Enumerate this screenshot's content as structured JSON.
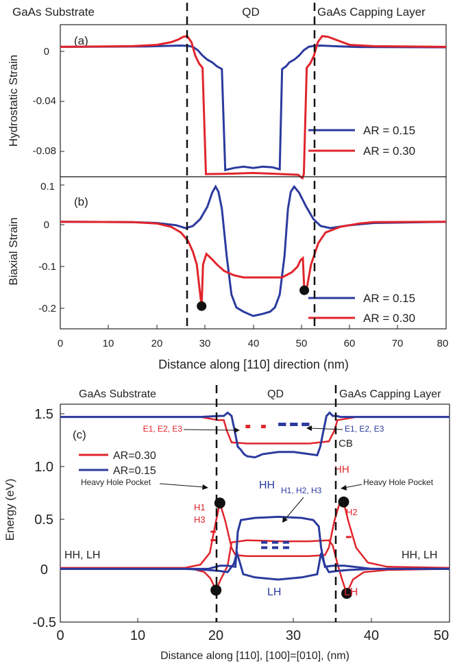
{
  "chart_data": [
    {
      "type": "line",
      "panel_label": "(a)",
      "region_labels": [
        "GaAs Substrate",
        "QD",
        "GaAs Capping Layer"
      ],
      "ylabel": "Hydrostatic Strain",
      "yticks": [
        "0",
        "-0.04",
        "-0.08"
      ],
      "ylim": [
        -0.096,
        0.017
      ],
      "xlim": [
        0,
        80
      ],
      "dividers": [
        26.7,
        53.3
      ],
      "legend": {
        "placement": "right",
        "entries": [
          "AR = 0.15",
          "AR = 0.30"
        ]
      },
      "series": [
        {
          "name": "AR = 0.15",
          "color": "#2b3a9e",
          "x": [
            0,
            18,
            22,
            25,
            26.5,
            27.5,
            28.5,
            29.5,
            30.5,
            31.5,
            32.5,
            33.5,
            34.2,
            36,
            38,
            40,
            42,
            44,
            45.5,
            46,
            46.8,
            47.5,
            48.5,
            49.5,
            50.5,
            51.5,
            52.5,
            54,
            58,
            62,
            80
          ],
          "y": [
            0.0005,
            0.0008,
            0.0012,
            0.0015,
            0.0012,
            0.0005,
            -0.002,
            -0.006,
            -0.009,
            -0.011,
            -0.014,
            -0.016,
            -0.091,
            -0.0895,
            -0.0885,
            -0.0895,
            -0.0885,
            -0.089,
            -0.0905,
            -0.016,
            -0.014,
            -0.011,
            -0.009,
            -0.006,
            -0.002,
            0.0005,
            0.0012,
            0.0015,
            0.0008,
            0.0004,
            0.0002
          ]
        },
        {
          "name": "AR = 0.30",
          "color": "#e0242b",
          "x": [
            0,
            15,
            20,
            23,
            24.5,
            25.5,
            26.3,
            27.2,
            28,
            28.8,
            29.5,
            30.2,
            34,
            40,
            46,
            49.3,
            50.2,
            50.5,
            51.1,
            51.8,
            52.6,
            53.4,
            54.3,
            55.5,
            57,
            60,
            65,
            80
          ],
          "y": [
            0.0005,
            0.001,
            0.002,
            0.004,
            0.006,
            0.008,
            0.0085,
            0.004,
            -0.006,
            -0.012,
            -0.015,
            -0.094,
            -0.0938,
            -0.0932,
            -0.094,
            -0.0945,
            -0.097,
            -0.094,
            -0.015,
            -0.012,
            -0.006,
            0.004,
            0.0085,
            0.008,
            0.006,
            0.002,
            0.001,
            0.0005
          ]
        }
      ]
    },
    {
      "type": "line",
      "panel_label": "(b)",
      "ylabel": "Biaxial Strain",
      "xlabel": "Distance along [110] direction (nm)",
      "xticks": [
        "0",
        "10",
        "20",
        "30",
        "40",
        "50",
        "60",
        "70",
        "80"
      ],
      "yticks": [
        "0.1",
        "0",
        "-0.1",
        "-0.2"
      ],
      "ylim": [
        -0.25,
        0.105
      ],
      "xlim": [
        0,
        80
      ],
      "dividers": [
        26.7,
        53.3
      ],
      "legend": {
        "placement": "right",
        "entries": [
          "AR = 0.15",
          "AR = 0.30"
        ]
      },
      "markers": [
        {
          "x": 29.3,
          "y": -0.197
        },
        {
          "x": 50.6,
          "y": -0.16
        }
      ],
      "series": [
        {
          "name": "AR = 0.15",
          "color": "#2b3a9e",
          "x": [
            0,
            15,
            20,
            24,
            26,
            27.5,
            29,
            30.5,
            31.5,
            32.2,
            32.8,
            33.5,
            34.5,
            35.5,
            36.5,
            38,
            40,
            42,
            43.5,
            44.5,
            45.5,
            46.5,
            47.2,
            47.8,
            48.5,
            49.5,
            51,
            52.5,
            54,
            56,
            60,
            65,
            80
          ],
          "y": [
            0.0,
            -0.001,
            -0.003,
            -0.008,
            -0.015,
            -0.01,
            0.006,
            0.035,
            0.068,
            0.082,
            0.07,
            0.03,
            -0.08,
            -0.17,
            -0.2,
            -0.21,
            -0.22,
            -0.215,
            -0.21,
            -0.2,
            -0.17,
            -0.08,
            0.03,
            0.07,
            0.082,
            0.068,
            0.035,
            0.006,
            -0.01,
            -0.015,
            -0.008,
            -0.003,
            0.0
          ]
        },
        {
          "name": "AR = 0.30",
          "color": "#e0242b",
          "x": [
            0,
            15,
            20,
            23,
            25,
            26.5,
            27.5,
            28.3,
            28.8,
            29.3,
            29.6,
            30.3,
            31.5,
            32.5,
            34,
            36,
            38,
            42,
            46,
            48,
            49.2,
            49.8,
            50.3,
            50.6,
            51.2,
            52,
            53.5,
            55,
            58,
            62,
            65,
            80
          ],
          "y": [
            0.0,
            -0.001,
            -0.004,
            -0.012,
            -0.025,
            -0.045,
            -0.07,
            -0.1,
            -0.15,
            -0.197,
            -0.1,
            -0.075,
            -0.088,
            -0.1,
            -0.115,
            -0.125,
            -0.13,
            -0.13,
            -0.13,
            -0.118,
            -0.105,
            -0.09,
            -0.085,
            -0.16,
            -0.15,
            -0.1,
            -0.05,
            -0.025,
            -0.012,
            -0.004,
            -0.001,
            0.0
          ]
        }
      ]
    },
    {
      "type": "line",
      "panel_label": "(c)",
      "region_labels": [
        "GaAs Substrate",
        "QD",
        "GaAs Capping Layer"
      ],
      "ylabel": "Energy (eV)",
      "xlabel": "Distance along [110], [100]=[010], (nm)",
      "xticks": [
        "0",
        "10",
        "20",
        "30",
        "40",
        "50"
      ],
      "yticks": [
        "1.5",
        "1.0",
        "0.5",
        "0",
        "-0.5"
      ],
      "ylim": [
        -0.5,
        1.55
      ],
      "xlim": [
        0,
        50
      ],
      "dividers": [
        20.5,
        36.0
      ],
      "legend": {
        "placement": "left",
        "entries": [
          "AR=0.30",
          "AR=0.15"
        ]
      },
      "annotations": {
        "e_red": "E1, E2, E3",
        "e_blue": "E1, E2, E3",
        "cb": "CB",
        "hh_hole_pocket_left": "Heavy Hole Pocket",
        "hh_hole_pocket_right": "Heavy Hole Pocket",
        "h_blue": "H1, H2, H3",
        "hh_blue": "HH",
        "hh_red": "HH",
        "h1": "H1",
        "h3": "H3",
        "h2": "H2",
        "lh_blue": "LH",
        "lh_red": "LH",
        "hhlh_left": "HH, LH",
        "hhlh_right": "HH, LH"
      },
      "markers": [
        {
          "x": 20.5,
          "y": 0.62
        },
        {
          "x": 20.0,
          "y": -0.2
        },
        {
          "x": 36.4,
          "y": 0.63
        },
        {
          "x": 36.8,
          "y": -0.23
        }
      ],
      "energy_levels": {
        "red_E": [
          {
            "x0": 23.8,
            "x1": 24.4,
            "y": 1.34
          },
          {
            "x0": 25.8,
            "x1": 26.4,
            "y": 1.34
          }
        ],
        "blue_E": [
          {
            "x0": 28.0,
            "x1": 29.0,
            "y": 1.36
          },
          {
            "x0": 29.5,
            "x1": 30.5,
            "y": 1.36
          },
          {
            "x0": 31.0,
            "x1": 32.0,
            "y": 1.36
          }
        ],
        "blue_H": [
          {
            "x0": 25.8,
            "x1": 26.6,
            "y": 0.25
          },
          {
            "x0": 27.2,
            "x1": 28.0,
            "y": 0.25
          },
          {
            "x0": 28.6,
            "x1": 29.4,
            "y": 0.25
          },
          {
            "x0": 25.8,
            "x1": 26.6,
            "y": 0.2
          },
          {
            "x0": 27.2,
            "x1": 28.0,
            "y": 0.2
          },
          {
            "x0": 28.6,
            "x1": 29.4,
            "y": 0.2
          }
        ],
        "red_H": [
          {
            "x0": 19.3,
            "x1": 20.0,
            "y": 0.35
          },
          {
            "x0": 19.3,
            "x1": 20.0,
            "y": 0.27
          },
          {
            "x0": 36.7,
            "x1": 37.4,
            "y": 0.3
          }
        ]
      },
      "series": [
        {
          "name": "AR=0.30",
          "color": "#e0242b",
          "x": [
            0,
            18,
            19.5,
            20.3,
            21.0,
            21.4,
            22.0,
            24,
            28,
            32,
            34.5,
            35.2,
            35.6,
            36.5,
            38,
            50
          ],
          "y": [
            1.43,
            1.43,
            1.41,
            1.4,
            1.4,
            1.3,
            1.19,
            1.18,
            1.18,
            1.18,
            1.2,
            1.3,
            1.4,
            1.41,
            1.43,
            1.43
          ]
        },
        {
          "name": "AR=0.30",
          "color": "#e0242b",
          "x": [
            0,
            16,
            18,
            19.2,
            20.0,
            20.5,
            21.2,
            22.0,
            22.5,
            24,
            28,
            32,
            34,
            34.5,
            35.2,
            35.8,
            36.4,
            37.0,
            38.0,
            39.5,
            42,
            50
          ],
          "y": [
            0.01,
            0.01,
            0.04,
            0.15,
            0.45,
            0.62,
            0.45,
            0.2,
            0.13,
            0.12,
            0.12,
            0.12,
            0.13,
            0.2,
            0.45,
            0.6,
            0.63,
            0.45,
            0.2,
            0.06,
            0.02,
            0.01
          ]
        },
        {
          "name": "AR=0.30",
          "color": "#e0242b",
          "x": [
            0,
            17,
            18.5,
            19.3,
            20.0,
            20.6,
            21.5,
            22.0,
            24,
            28,
            32,
            34.5,
            35.0,
            35.6,
            36.2,
            36.8,
            37.6,
            39,
            42,
            50
          ],
          "y": [
            0.0,
            0.0,
            -0.03,
            -0.09,
            -0.2,
            -0.1,
            0.03,
            0.25,
            0.27,
            0.26,
            0.26,
            0.27,
            0.22,
            0.05,
            -0.1,
            -0.23,
            -0.1,
            -0.03,
            -0.01,
            0.0
          ]
        },
        {
          "name": "AR=0.15",
          "color": "#2b3a9e",
          "x": [
            0,
            18,
            20.5,
            21.0,
            21.5,
            22.0,
            22.4,
            22.8,
            23.2,
            23.6,
            24,
            25,
            26,
            28,
            30,
            32,
            33,
            33.4,
            33.8,
            34.2,
            34.6,
            35.0,
            35.5,
            36.0,
            38,
            50
          ],
          "y": [
            1.43,
            1.43,
            1.44,
            1.44,
            1.47,
            1.44,
            1.3,
            1.15,
            1.12,
            1.08,
            1.06,
            1.05,
            1.08,
            1.1,
            1.1,
            1.08,
            1.07,
            1.15,
            1.3,
            1.44,
            1.47,
            1.44,
            1.44,
            1.43,
            1.43,
            1.43
          ]
        },
        {
          "name": "AR=0.15",
          "color": "#2b3a9e",
          "x": [
            0,
            16,
            19,
            20.5,
            21.5,
            22.5,
            22.8,
            23.2,
            25,
            28,
            31,
            32.5,
            33.2,
            33.5,
            34.0,
            35.0,
            36.5,
            40,
            50
          ],
          "y": [
            0.0,
            0.0,
            0.0,
            0.03,
            0.03,
            0.02,
            0.35,
            0.46,
            0.48,
            0.49,
            0.48,
            0.46,
            0.4,
            0.2,
            0.02,
            0.03,
            0.03,
            0.0,
            0.0
          ]
        },
        {
          "name": "AR=0.15",
          "color": "#2b3a9e",
          "x": [
            0,
            16,
            19,
            20.5,
            21.5,
            22.3,
            22.7,
            23.5,
            25,
            28,
            31,
            33,
            33.5,
            33.9,
            34.5,
            35.5,
            37,
            40,
            50
          ],
          "y": [
            0.0,
            0.0,
            -0.01,
            -0.02,
            -0.03,
            0.05,
            0.15,
            -0.05,
            -0.08,
            -0.1,
            -0.08,
            -0.05,
            0.15,
            0.05,
            -0.03,
            -0.02,
            -0.01,
            0.0,
            0.0
          ]
        }
      ]
    }
  ]
}
